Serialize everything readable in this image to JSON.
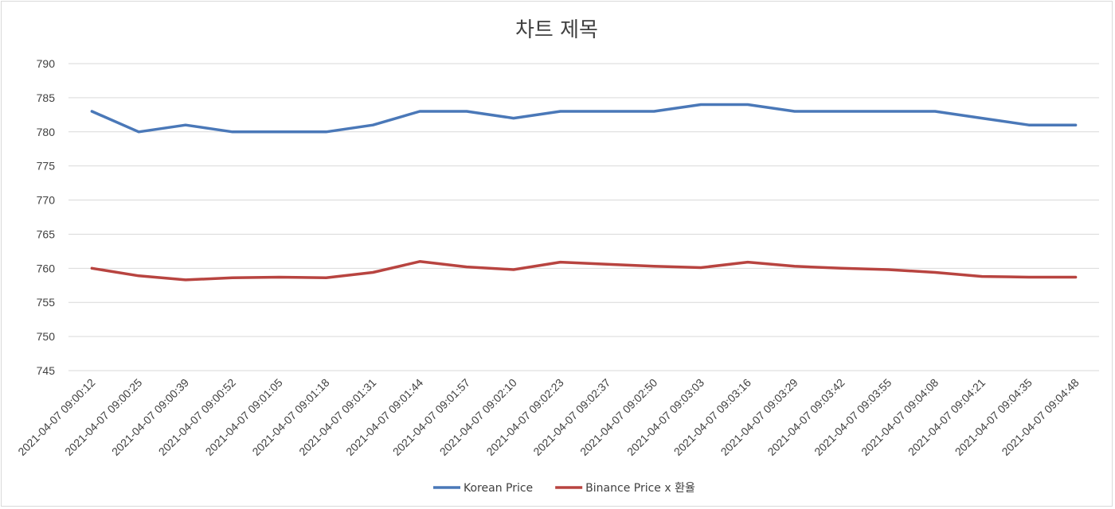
{
  "chart_data": {
    "type": "line",
    "title": "차트 제목",
    "xlabel": "",
    "ylabel": "",
    "ylim": [
      745,
      790
    ],
    "yticks": [
      745,
      750,
      755,
      760,
      765,
      770,
      775,
      780,
      785,
      790
    ],
    "grid": true,
    "legend_position": "bottom",
    "categories": [
      "2021-04-07 09:00:12",
      "2021-04-07 09:00:25",
      "2021-04-07 09:00:39",
      "2021-04-07 09:00:52",
      "2021-04-07 09:01:05",
      "2021-04-07 09:01:18",
      "2021-04-07 09:01:31",
      "2021-04-07 09:01:44",
      "2021-04-07 09:01:57",
      "2021-04-07 09:02:10",
      "2021-04-07 09:02:23",
      "2021-04-07 09:02:37",
      "2021-04-07 09:02:50",
      "2021-04-07 09:03:03",
      "2021-04-07 09:03:16",
      "2021-04-07 09:03:29",
      "2021-04-07 09:03:42",
      "2021-04-07 09:03:55",
      "2021-04-07 09:04:08",
      "2021-04-07 09:04:21",
      "2021-04-07 09:04:35",
      "2021-04-07 09:04:48"
    ],
    "series": [
      {
        "name": "Korean Price",
        "color": "#4a78b8",
        "values": [
          783,
          780,
          781,
          780,
          780,
          780,
          781,
          783,
          783,
          782,
          783,
          783,
          783,
          784,
          784,
          783,
          783,
          783,
          783,
          782,
          781,
          781
        ]
      },
      {
        "name": "Binance Price x 환율",
        "color": "#b84440",
        "values": [
          760,
          758.9,
          758.3,
          758.6,
          758.7,
          758.6,
          759.4,
          761,
          760.2,
          759.8,
          760.9,
          760.6,
          760.3,
          760.1,
          760.9,
          760.3,
          760,
          759.8,
          759.4,
          758.8,
          758.7,
          758.7
        ]
      }
    ]
  }
}
